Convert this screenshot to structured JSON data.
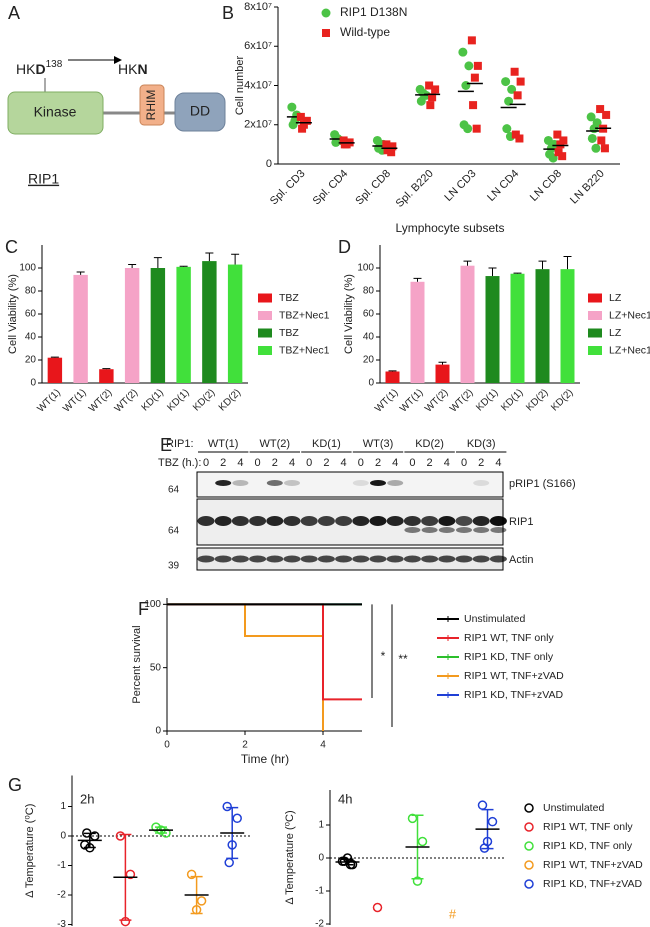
{
  "diagram": {
    "panel": "A",
    "from_prefix": "HK",
    "from_residue": "D",
    "position": "138",
    "to_prefix": "HK",
    "to_residue": "N",
    "domains": [
      "Kinase",
      "RHIM",
      "DD"
    ],
    "protein": "RIP1"
  },
  "chart_data": [
    {
      "panel": "B",
      "type": "dot",
      "ylabel": "Cell number",
      "xlabel": "Lymphocyte subsets",
      "mean": true,
      "categories": [
        "Spl. CD3",
        "Spl. CD4",
        "Spl. CD8",
        "Spl. B220",
        "LN CD3",
        "LN CD4",
        "LN CD8",
        "LN B220"
      ],
      "ylim": [
        0,
        80000000
      ],
      "yticks": [
        0,
        {
          "value": 20000000,
          "label": "2x10⁷"
        },
        {
          "value": 40000000,
          "label": "4x10⁷"
        },
        {
          "value": 60000000,
          "label": "6x10⁷"
        },
        {
          "value": 80000000,
          "label": "8x10⁷"
        }
      ],
      "series": [
        {
          "name": "RIP1 D138N",
          "color": "#4cc346",
          "marker": "circle",
          "values": [
            [
              29000000,
              24000000,
              22000000,
              20000000,
              25000000
            ],
            [
              15000000,
              12000000,
              13000000,
              11000000
            ],
            [
              12000000,
              10000000,
              9000000,
              8000000,
              7000000
            ],
            [
              38000000,
              35000000,
              36000000,
              32000000
            ],
            [
              57000000,
              50000000,
              40000000,
              20000000,
              18000000
            ],
            [
              42000000,
              38000000,
              32000000,
              18000000,
              14000000
            ],
            [
              12000000,
              10000000,
              8000000,
              5000000,
              3000000
            ],
            [
              24000000,
              21000000,
              18000000,
              13000000,
              8000000
            ]
          ]
        },
        {
          "name": "Wild-type",
          "color": "#e8231f",
          "marker": "square",
          "values": [
            [
              24000000,
              22000000,
              20000000,
              18000000
            ],
            [
              12000000,
              11000000,
              10000000,
              10000000
            ],
            [
              10000000,
              9000000,
              8000000,
              7000000,
              6000000
            ],
            [
              40000000,
              38000000,
              34000000,
              30000000
            ],
            [
              63000000,
              50000000,
              44000000,
              30000000,
              18000000
            ],
            [
              47000000,
              42000000,
              35000000,
              15000000,
              13000000
            ],
            [
              15000000,
              12000000,
              10000000,
              6000000,
              4000000
            ],
            [
              28000000,
              25000000,
              18000000,
              12000000,
              8000000
            ]
          ]
        }
      ]
    },
    {
      "panel": "C",
      "type": "bar",
      "ylabel": "Cell Viability (%)",
      "ylim": [
        0,
        120
      ],
      "yticks": [
        0,
        20,
        40,
        60,
        80,
        100
      ],
      "categories": [
        "WT(1)",
        "WT(1)",
        "WT(2)",
        "WT(2)",
        "KD(1)",
        "KD(1)",
        "KD(2)",
        "KD(2)"
      ],
      "values": [
        22,
        94,
        12,
        100,
        100,
        101,
        106,
        103
      ],
      "errors": [
        0.5,
        2.5,
        0.5,
        3,
        9,
        0.5,
        7,
        9
      ],
      "colors": [
        "#e8161b",
        "#f5a3c7",
        "#e8161b",
        "#f5a3c7",
        "#1e8a1e",
        "#41e03b",
        "#1e8a1e",
        "#41e03b"
      ],
      "legend": [
        {
          "label": "TBZ",
          "color": "#e8161b"
        },
        {
          "label": "TBZ+Nec1",
          "color": "#f5a3c7"
        },
        {
          "label": "TBZ",
          "color": "#1e8a1e"
        },
        {
          "label": "TBZ+Nec1",
          "color": "#41e03b"
        }
      ]
    },
    {
      "panel": "D",
      "type": "bar",
      "ylabel": "Cell Viability (%)",
      "ylim": [
        0,
        120
      ],
      "yticks": [
        0,
        20,
        40,
        60,
        80,
        100
      ],
      "categories": [
        "WT(1)",
        "WT(1)",
        "WT(2)",
        "WT(2)",
        "KD(1)",
        "KD(1)",
        "KD(2)",
        "KD(2)"
      ],
      "values": [
        10,
        88,
        16,
        102,
        93,
        95,
        99,
        99
      ],
      "errors": [
        0.5,
        3,
        2,
        4,
        7,
        0.5,
        7,
        11
      ],
      "colors": [
        "#e8161b",
        "#f5a3c7",
        "#e8161b",
        "#f5a3c7",
        "#1e8a1e",
        "#41e03b",
        "#1e8a1e",
        "#41e03b"
      ],
      "legend": [
        {
          "label": "LZ",
          "color": "#e8161b"
        },
        {
          "label": "LZ+Nec1",
          "color": "#f5a3c7"
        },
        {
          "label": "LZ",
          "color": "#1e8a1e"
        },
        {
          "label": "LZ+Nec1",
          "color": "#41e03b"
        }
      ]
    },
    {
      "panel": "F",
      "type": "line",
      "step": true,
      "ylabel": "Percent survival",
      "xlabel": "Time (hr)",
      "xlim": [
        0,
        5
      ],
      "xticks": [
        0,
        2,
        4
      ],
      "ylim": [
        0,
        105
      ],
      "yticks": [
        0,
        50,
        100
      ],
      "annotations": [
        "*",
        "**"
      ],
      "series": [
        {
          "name": "Unstimulated",
          "color": "#000000",
          "x": [
            0,
            5
          ],
          "values": [
            100,
            100
          ]
        },
        {
          "name": "RIP1 WT, TNF only",
          "color": "#e8232a",
          "x": [
            0,
            4,
            5
          ],
          "values": [
            100,
            25,
            25
          ]
        },
        {
          "name": "RIP1 KD, TNF only",
          "color": "#2bbf2b",
          "x": [
            0,
            5
          ],
          "values": [
            100,
            100
          ]
        },
        {
          "name": "RIP1 WT, TNF+zVAD",
          "color": "#f39a1e",
          "x": [
            0,
            2,
            4
          ],
          "values": [
            100,
            75,
            0
          ]
        },
        {
          "name": "RIP1 KD, TNF+zVAD",
          "color": "#1f3fd6",
          "x": [
            0,
            5
          ],
          "values": [
            100,
            100
          ]
        }
      ]
    },
    {
      "panel": "G",
      "type": "dot",
      "title": "2h",
      "ylabel": "Δ Temperature (⁰C)",
      "mean": true,
      "sd": true,
      "zero_line": true,
      "marker": "open-circle",
      "ylim": [
        -3.05,
        2.05
      ],
      "yticks": [
        1,
        0,
        -1,
        -2,
        -3
      ],
      "series": [
        {
          "color": "#000000",
          "values": [
            -0.3,
            0.0,
            -0.4,
            0.1
          ]
        },
        {
          "color": "#e8232a",
          "values": [
            0.0,
            -1.3,
            -2.9
          ]
        },
        {
          "color": "#41e03b",
          "values": [
            0.3,
            0.1,
            0.2
          ]
        },
        {
          "color": "#f39a1e",
          "values": [
            -1.3,
            -2.2,
            -2.5
          ]
        },
        {
          "color": "#1f3fd6",
          "values": [
            1.0,
            0.6,
            -0.3,
            -0.9
          ]
        }
      ]
    },
    {
      "type": "dot",
      "title": "4h",
      "ylabel": "Δ Temperature (⁰C)",
      "mean": true,
      "sd": true,
      "zero_line": true,
      "marker": "open-circle",
      "ylim": [
        -2.03,
        2.06
      ],
      "yticks": [
        1,
        0,
        -1,
        -2
      ],
      "annotations": [
        "#"
      ],
      "series": [
        {
          "name": "Unstimulated",
          "color": "#000000",
          "values": [
            -0.1,
            -0.2,
            0.0,
            -0.1,
            -0.2
          ]
        },
        {
          "name": "RIP1 WT, TNF only",
          "color": "#e8232a",
          "values": [
            -1.5
          ]
        },
        {
          "name": "RIP1 KD, TNF only",
          "color": "#41e03b",
          "values": [
            1.2,
            0.5,
            -0.7
          ]
        },
        {
          "name": "RIP1 WT, TNF+zVAD",
          "color": "#f39a1e",
          "values": []
        },
        {
          "name": "RIP1 KD, TNF+zVAD",
          "color": "#1f3fd6",
          "values": [
            1.6,
            1.1,
            0.5,
            0.3
          ]
        }
      ]
    }
  ],
  "blot": {
    "panel": "E",
    "row_label": "RIP1:",
    "time_label": "TBZ (h.):",
    "groups": [
      {
        "label": "WT(1)",
        "times": [
          "0",
          "2",
          "4"
        ]
      },
      {
        "label": "WT(2)",
        "times": [
          "0",
          "2",
          "4"
        ]
      },
      {
        "label": "KD(1)",
        "times": [
          "0",
          "2",
          "4"
        ]
      },
      {
        "label": "WT(3)",
        "times": [
          "0",
          "2",
          "4"
        ]
      },
      {
        "label": "KD(2)",
        "times": [
          "0",
          "2",
          "4"
        ]
      },
      {
        "label": "KD(3)",
        "times": [
          "0",
          "2",
          "4"
        ]
      }
    ],
    "bands": [
      {
        "label": "pRIP1 (S166)",
        "mw": "64"
      },
      {
        "label": "RIP1",
        "mw": "64"
      },
      {
        "label": "Actin",
        "mw": "39"
      }
    ]
  }
}
